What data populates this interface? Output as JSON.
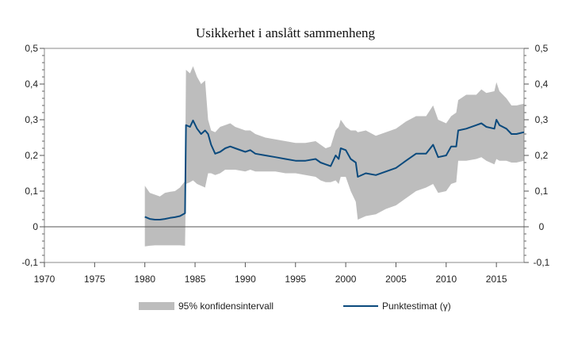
{
  "chart_data": {
    "type": "area",
    "title": "Usikkerhet i anslått sammenheng",
    "xlabel": "",
    "ylabel": "",
    "xlim": [
      1970,
      2017.75
    ],
    "ylim": [
      -0.1,
      0.5
    ],
    "x_ticks": [
      1970,
      1975,
      1980,
      1985,
      1990,
      1995,
      2000,
      2005,
      2010,
      2015
    ],
    "x_tick_labels": [
      "1970",
      "1975",
      "1980",
      "1985",
      "1990",
      "1995",
      "2000",
      "2005",
      "2010",
      "2015"
    ],
    "y_ticks": [
      -0.1,
      0,
      0.1,
      0.2,
      0.3,
      0.4,
      0.5
    ],
    "y_tick_labels": [
      "-0,1",
      "0",
      "0,1",
      "0,2",
      "0,3",
      "0,4",
      "0,5"
    ],
    "legend_placement": "bottom",
    "colors": {
      "band": "#bdbdbd",
      "line": "#0b4a7d",
      "zero": "#555555"
    },
    "series": [
      {
        "name": "95% konfidensintervall",
        "kind": "band",
        "x": [
          1980.0,
          1980.5,
          1981,
          1981.5,
          1982,
          1982.5,
          1983,
          1983.5,
          1984.0,
          1984.1,
          1984.5,
          1984.8,
          1985.2,
          1985.6,
          1986.0,
          1986.3,
          1986.6,
          1987,
          1987.5,
          1988,
          1988.5,
          1989,
          1990,
          1990.5,
          1991,
          1992,
          1993,
          1994,
          1995,
          1996,
          1997,
          1997.5,
          1998,
          1998.5,
          1999,
          1999.3,
          1999.5,
          2000,
          2000.5,
          2001,
          2001.2,
          2002,
          2003,
          2004,
          2005,
          2006,
          2007,
          2008,
          2008.7,
          2009.2,
          2010,
          2010.5,
          2011,
          2011.2,
          2012,
          2013,
          2013.5,
          2014,
          2014.8,
          2015,
          2015.3,
          2016,
          2016.5,
          2017,
          2017.75
        ],
        "lower": [
          -0.055,
          -0.053,
          -0.052,
          -0.052,
          -0.052,
          -0.052,
          -0.052,
          -0.052,
          -0.053,
          0.12,
          0.125,
          0.13,
          0.12,
          0.115,
          0.11,
          0.15,
          0.15,
          0.145,
          0.15,
          0.16,
          0.16,
          0.16,
          0.155,
          0.16,
          0.155,
          0.155,
          0.155,
          0.15,
          0.15,
          0.145,
          0.14,
          0.13,
          0.125,
          0.125,
          0.13,
          0.12,
          0.14,
          0.14,
          0.1,
          0.07,
          0.02,
          0.03,
          0.035,
          0.05,
          0.06,
          0.08,
          0.1,
          0.11,
          0.12,
          0.095,
          0.1,
          0.12,
          0.125,
          0.185,
          0.185,
          0.19,
          0.195,
          0.185,
          0.175,
          0.19,
          0.185,
          0.185,
          0.18,
          0.18,
          0.185
        ],
        "upper": [
          0.115,
          0.095,
          0.09,
          0.085,
          0.095,
          0.098,
          0.1,
          0.11,
          0.128,
          0.44,
          0.43,
          0.45,
          0.42,
          0.4,
          0.41,
          0.3,
          0.27,
          0.265,
          0.28,
          0.285,
          0.29,
          0.28,
          0.27,
          0.27,
          0.26,
          0.25,
          0.245,
          0.24,
          0.235,
          0.235,
          0.24,
          0.23,
          0.22,
          0.225,
          0.27,
          0.28,
          0.3,
          0.28,
          0.27,
          0.27,
          0.265,
          0.27,
          0.255,
          0.265,
          0.275,
          0.295,
          0.31,
          0.31,
          0.34,
          0.3,
          0.29,
          0.31,
          0.32,
          0.355,
          0.37,
          0.37,
          0.385,
          0.375,
          0.38,
          0.405,
          0.38,
          0.36,
          0.34,
          0.34,
          0.345
        ]
      },
      {
        "name": "Punktestimat (γ)",
        "kind": "line",
        "x": [
          1980.0,
          1980.5,
          1981,
          1981.5,
          1982,
          1982.5,
          1983,
          1983.5,
          1984.0,
          1984.1,
          1984.5,
          1984.8,
          1985.2,
          1985.6,
          1986.0,
          1986.3,
          1986.6,
          1987,
          1987.5,
          1988,
          1988.5,
          1989,
          1990,
          1990.5,
          1991,
          1992,
          1993,
          1994,
          1995,
          1996,
          1997,
          1997.5,
          1998,
          1998.5,
          1999,
          1999.3,
          1999.5,
          2000,
          2000.5,
          2001,
          2001.2,
          2002,
          2003,
          2004,
          2005,
          2006,
          2007,
          2008,
          2008.7,
          2009.2,
          2010,
          2010.5,
          2011,
          2011.2,
          2012,
          2013,
          2013.5,
          2014,
          2014.8,
          2015,
          2015.3,
          2016,
          2016.5,
          2017,
          2017.75
        ],
        "values": [
          0.028,
          0.022,
          0.02,
          0.02,
          0.022,
          0.025,
          0.027,
          0.03,
          0.038,
          0.285,
          0.28,
          0.298,
          0.275,
          0.26,
          0.27,
          0.26,
          0.23,
          0.205,
          0.21,
          0.22,
          0.225,
          0.22,
          0.21,
          0.215,
          0.205,
          0.2,
          0.195,
          0.19,
          0.185,
          0.185,
          0.19,
          0.18,
          0.175,
          0.17,
          0.2,
          0.19,
          0.22,
          0.215,
          0.19,
          0.18,
          0.14,
          0.15,
          0.145,
          0.155,
          0.165,
          0.185,
          0.205,
          0.205,
          0.23,
          0.195,
          0.2,
          0.225,
          0.225,
          0.27,
          0.275,
          0.285,
          0.29,
          0.28,
          0.275,
          0.3,
          0.285,
          0.275,
          0.26,
          0.26,
          0.265
        ]
      }
    ]
  },
  "legend": {
    "band_label": "95% konfidensintervall",
    "line_label": "Punktestimat (γ)"
  }
}
